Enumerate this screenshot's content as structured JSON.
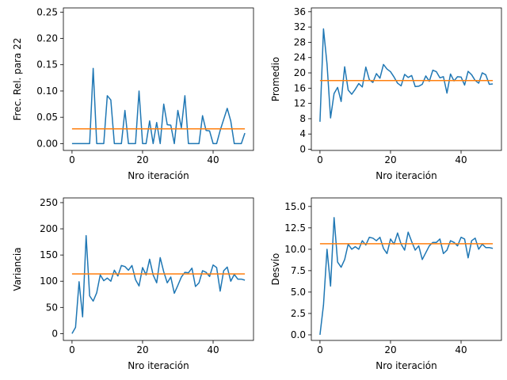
{
  "colors": {
    "series": "#1f77b4",
    "reference": "#ff7f0e"
  },
  "chart_data": [
    {
      "type": "line",
      "xlabel": "Nro iteración",
      "ylabel": "Frec. Rel. para 22",
      "xlim": [
        -2.45,
        51.45
      ],
      "ylim": [
        -0.013,
        0.258
      ],
      "xticks": [
        0,
        20,
        40
      ],
      "yticks": [
        0.0,
        0.05,
        0.1,
        0.15,
        0.2,
        0.25
      ],
      "ytick_labels": [
        "0.00",
        "0.05",
        "0.10",
        "0.15",
        "0.20",
        "0.25"
      ],
      "grid": false,
      "series": [
        {
          "values": [
            0,
            0,
            0,
            0,
            0,
            0,
            0.143,
            0,
            0,
            0,
            0.091,
            0.083,
            0,
            0,
            0,
            0.063,
            0,
            0,
            0,
            0.1,
            0,
            0,
            0.043,
            0,
            0.04,
            0,
            0.075,
            0.036,
            0.035,
            0,
            0.063,
            0.03,
            0.091,
            0,
            0,
            0,
            0,
            0.053,
            0.025,
            0.024,
            0,
            0,
            0.025,
            0.046,
            0.067,
            0.043,
            0,
            0,
            0,
            0.02
          ]
        },
        {
          "values": [
            0.028,
            0.028
          ],
          "x": [
            0,
            49
          ]
        }
      ]
    },
    {
      "type": "line",
      "xlabel": "Nro iteración",
      "ylabel": "Promedio",
      "xlim": [
        -2.45,
        51.45
      ],
      "ylim": [
        -0.3,
        37.0
      ],
      "xticks": [
        0,
        20,
        40
      ],
      "yticks": [
        0,
        4,
        8,
        12,
        16,
        20,
        24,
        28,
        32,
        36
      ],
      "grid": false,
      "series": [
        {
          "values": [
            7.2,
            31.5,
            22.3,
            8.2,
            14.6,
            16.2,
            12.5,
            21.6,
            15.5,
            14.4,
            15.7,
            17.2,
            16.3,
            21.5,
            18.2,
            17.5,
            19.8,
            18.6,
            22.2,
            21.0,
            20.3,
            18.9,
            17.3,
            16.6,
            19.6,
            18.8,
            19.3,
            16.4,
            16.5,
            17.0,
            19.2,
            17.8,
            20.7,
            20.3,
            18.7,
            19.0,
            14.7,
            19.7,
            17.9,
            19.0,
            18.9,
            16.8,
            20.4,
            19.5,
            18.0,
            17.3,
            20.0,
            19.5,
            17.0,
            17.1
          ]
        },
        {
          "values": [
            18.0,
            18.0
          ],
          "x": [
            0,
            49
          ]
        }
      ]
    },
    {
      "type": "line",
      "xlabel": "Nro iteración",
      "ylabel": "Variancia",
      "xlim": [
        -2.45,
        51.45
      ],
      "ylim": [
        -13,
        259
      ],
      "xticks": [
        0,
        20,
        40
      ],
      "yticks": [
        0,
        50,
        100,
        150,
        200,
        250
      ],
      "grid": false,
      "series": [
        {
          "values": [
            0,
            12,
            99,
            32,
            187,
            72,
            62,
            78,
            112,
            101,
            106,
            100,
            121,
            110,
            130,
            128,
            121,
            130,
            103,
            91,
            126,
            112,
            142,
            112,
            97,
            145,
            118,
            97,
            108,
            77,
            92,
            108,
            117,
            116,
            125,
            90,
            97,
            120,
            117,
            109,
            131,
            126,
            81,
            120,
            127,
            100,
            113,
            104,
            104,
            102
          ]
        },
        {
          "values": [
            114,
            114
          ],
          "x": [
            0,
            49
          ]
        }
      ]
    },
    {
      "type": "line",
      "xlabel": "Nro iteración",
      "ylabel": "Desvío",
      "xlim": [
        -2.45,
        51.45
      ],
      "ylim": [
        -0.65,
        16.0
      ],
      "xticks": [
        0,
        20,
        40
      ],
      "yticks": [
        0.0,
        2.5,
        5.0,
        7.5,
        10.0,
        12.5,
        15.0
      ],
      "ytick_labels": [
        "0.0",
        "2.5",
        "5.0",
        "7.5",
        "10.0",
        "12.5",
        "15.0"
      ],
      "grid": false,
      "series": [
        {
          "values": [
            0,
            3.5,
            10.0,
            5.7,
            13.7,
            8.5,
            7.9,
            8.8,
            10.6,
            10.0,
            10.3,
            10.0,
            11.0,
            10.5,
            11.4,
            11.3,
            11.0,
            11.4,
            10.1,
            9.5,
            11.2,
            10.6,
            11.9,
            10.6,
            9.9,
            12.0,
            10.9,
            9.9,
            10.4,
            8.8,
            9.6,
            10.4,
            10.8,
            10.8,
            11.2,
            9.5,
            9.9,
            11.0,
            10.8,
            10.4,
            11.4,
            11.2,
            9.0,
            11.0,
            11.3,
            10.0,
            10.6,
            10.2,
            10.2,
            10.1
          ]
        },
        {
          "values": [
            10.65,
            10.65
          ],
          "x": [
            0,
            49
          ]
        }
      ]
    }
  ]
}
